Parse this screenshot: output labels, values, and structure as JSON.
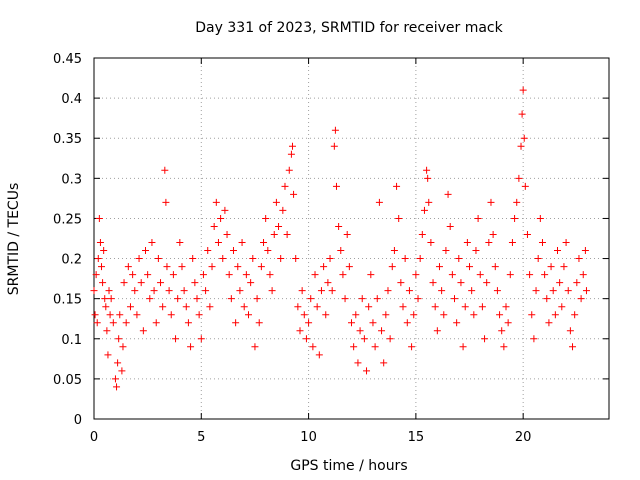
{
  "chart_data": {
    "type": "scatter",
    "title": "Day 331 of 2023, SRMTID for receiver mack",
    "xlabel": "GPS time / hours",
    "ylabel": "SRMTID / TECUs",
    "xlim": [
      0,
      24
    ],
    "ylim": [
      0,
      0.45
    ],
    "xticks": [
      0,
      5,
      10,
      15,
      20
    ],
    "xtick_labels": [
      "0",
      "5",
      "10",
      "15",
      "20"
    ],
    "yticks": [
      0,
      0.05,
      0.1,
      0.15,
      0.2,
      0.25,
      0.3,
      0.35,
      0.4,
      0.45
    ],
    "ytick_labels": [
      "0",
      "0.05",
      "0.1",
      "0.15",
      "0.2",
      "0.25",
      "0.3",
      "0.35",
      "0.4",
      "0.45"
    ],
    "grid": true,
    "marker": "+",
    "color": "#ff0000",
    "series": [
      {
        "name": "SRMTID",
        "points": [
          [
            0.0,
            0.16
          ],
          [
            0.05,
            0.13
          ],
          [
            0.1,
            0.18
          ],
          [
            0.15,
            0.12
          ],
          [
            0.2,
            0.2
          ],
          [
            0.25,
            0.25
          ],
          [
            0.3,
            0.22
          ],
          [
            0.35,
            0.19
          ],
          [
            0.4,
            0.17
          ],
          [
            0.45,
            0.21
          ],
          [
            0.5,
            0.15
          ],
          [
            0.55,
            0.14
          ],
          [
            0.6,
            0.11
          ],
          [
            0.65,
            0.08
          ],
          [
            0.7,
            0.16
          ],
          [
            0.75,
            0.13
          ],
          [
            0.8,
            0.15
          ],
          [
            0.9,
            0.12
          ],
          [
            1.0,
            0.05
          ],
          [
            1.05,
            0.04
          ],
          [
            1.1,
            0.07
          ],
          [
            1.15,
            0.1
          ],
          [
            1.2,
            0.13
          ],
          [
            1.3,
            0.06
          ],
          [
            1.35,
            0.09
          ],
          [
            1.4,
            0.17
          ],
          [
            1.5,
            0.12
          ],
          [
            1.6,
            0.19
          ],
          [
            1.7,
            0.14
          ],
          [
            1.8,
            0.18
          ],
          [
            1.9,
            0.16
          ],
          [
            2.0,
            0.13
          ],
          [
            2.1,
            0.2
          ],
          [
            2.2,
            0.17
          ],
          [
            2.3,
            0.11
          ],
          [
            2.4,
            0.21
          ],
          [
            2.5,
            0.18
          ],
          [
            2.6,
            0.15
          ],
          [
            2.7,
            0.22
          ],
          [
            2.8,
            0.16
          ],
          [
            2.9,
            0.12
          ],
          [
            3.0,
            0.2
          ],
          [
            3.1,
            0.17
          ],
          [
            3.2,
            0.14
          ],
          [
            3.3,
            0.31
          ],
          [
            3.35,
            0.27
          ],
          [
            3.4,
            0.19
          ],
          [
            3.5,
            0.16
          ],
          [
            3.6,
            0.13
          ],
          [
            3.7,
            0.18
          ],
          [
            3.8,
            0.1
          ],
          [
            3.9,
            0.15
          ],
          [
            4.0,
            0.22
          ],
          [
            4.1,
            0.19
          ],
          [
            4.2,
            0.16
          ],
          [
            4.3,
            0.14
          ],
          [
            4.4,
            0.12
          ],
          [
            4.5,
            0.09
          ],
          [
            4.6,
            0.2
          ],
          [
            4.7,
            0.17
          ],
          [
            4.8,
            0.15
          ],
          [
            4.9,
            0.13
          ],
          [
            5.0,
            0.1
          ],
          [
            5.1,
            0.18
          ],
          [
            5.2,
            0.16
          ],
          [
            5.3,
            0.21
          ],
          [
            5.4,
            0.14
          ],
          [
            5.5,
            0.19
          ],
          [
            5.6,
            0.24
          ],
          [
            5.7,
            0.27
          ],
          [
            5.8,
            0.22
          ],
          [
            5.9,
            0.25
          ],
          [
            6.0,
            0.2
          ],
          [
            6.1,
            0.26
          ],
          [
            6.2,
            0.23
          ],
          [
            6.3,
            0.18
          ],
          [
            6.4,
            0.15
          ],
          [
            6.5,
            0.21
          ],
          [
            6.6,
            0.12
          ],
          [
            6.7,
            0.19
          ],
          [
            6.8,
            0.16
          ],
          [
            6.9,
            0.22
          ],
          [
            7.0,
            0.14
          ],
          [
            7.1,
            0.18
          ],
          [
            7.2,
            0.13
          ],
          [
            7.3,
            0.17
          ],
          [
            7.4,
            0.2
          ],
          [
            7.5,
            0.09
          ],
          [
            7.6,
            0.15
          ],
          [
            7.7,
            0.12
          ],
          [
            7.8,
            0.19
          ],
          [
            7.9,
            0.22
          ],
          [
            8.0,
            0.25
          ],
          [
            8.1,
            0.21
          ],
          [
            8.2,
            0.18
          ],
          [
            8.3,
            0.16
          ],
          [
            8.4,
            0.23
          ],
          [
            8.5,
            0.27
          ],
          [
            8.6,
            0.24
          ],
          [
            8.7,
            0.2
          ],
          [
            8.8,
            0.26
          ],
          [
            8.9,
            0.29
          ],
          [
            9.0,
            0.23
          ],
          [
            9.1,
            0.31
          ],
          [
            9.2,
            0.33
          ],
          [
            9.25,
            0.34
          ],
          [
            9.3,
            0.28
          ],
          [
            9.4,
            0.2
          ],
          [
            9.5,
            0.14
          ],
          [
            9.6,
            0.11
          ],
          [
            9.7,
            0.16
          ],
          [
            9.8,
            0.13
          ],
          [
            9.9,
            0.1
          ],
          [
            10.0,
            0.12
          ],
          [
            10.1,
            0.15
          ],
          [
            10.2,
            0.09
          ],
          [
            10.3,
            0.18
          ],
          [
            10.4,
            0.14
          ],
          [
            10.5,
            0.08
          ],
          [
            10.6,
            0.16
          ],
          [
            10.7,
            0.19
          ],
          [
            10.8,
            0.13
          ],
          [
            10.9,
            0.17
          ],
          [
            11.0,
            0.2
          ],
          [
            11.1,
            0.16
          ],
          [
            11.2,
            0.34
          ],
          [
            11.25,
            0.36
          ],
          [
            11.3,
            0.29
          ],
          [
            11.4,
            0.24
          ],
          [
            11.5,
            0.21
          ],
          [
            11.6,
            0.18
          ],
          [
            11.7,
            0.15
          ],
          [
            11.8,
            0.23
          ],
          [
            11.9,
            0.19
          ],
          [
            12.0,
            0.12
          ],
          [
            12.1,
            0.09
          ],
          [
            12.2,
            0.13
          ],
          [
            12.3,
            0.07
          ],
          [
            12.4,
            0.11
          ],
          [
            12.5,
            0.15
          ],
          [
            12.6,
            0.1
          ],
          [
            12.7,
            0.06
          ],
          [
            12.8,
            0.14
          ],
          [
            12.9,
            0.18
          ],
          [
            13.0,
            0.12
          ],
          [
            13.1,
            0.09
          ],
          [
            13.2,
            0.15
          ],
          [
            13.3,
            0.27
          ],
          [
            13.4,
            0.11
          ],
          [
            13.5,
            0.07
          ],
          [
            13.6,
            0.13
          ],
          [
            13.7,
            0.16
          ],
          [
            13.8,
            0.1
          ],
          [
            13.9,
            0.19
          ],
          [
            14.0,
            0.21
          ],
          [
            14.1,
            0.29
          ],
          [
            14.2,
            0.25
          ],
          [
            14.3,
            0.17
          ],
          [
            14.4,
            0.14
          ],
          [
            14.5,
            0.2
          ],
          [
            14.6,
            0.12
          ],
          [
            14.7,
            0.16
          ],
          [
            14.8,
            0.09
          ],
          [
            14.9,
            0.13
          ],
          [
            15.0,
            0.18
          ],
          [
            15.1,
            0.15
          ],
          [
            15.2,
            0.2
          ],
          [
            15.3,
            0.23
          ],
          [
            15.4,
            0.26
          ],
          [
            15.5,
            0.31
          ],
          [
            15.55,
            0.3
          ],
          [
            15.6,
            0.27
          ],
          [
            15.7,
            0.22
          ],
          [
            15.8,
            0.17
          ],
          [
            15.9,
            0.14
          ],
          [
            16.0,
            0.11
          ],
          [
            16.1,
            0.19
          ],
          [
            16.2,
            0.16
          ],
          [
            16.3,
            0.13
          ],
          [
            16.4,
            0.21
          ],
          [
            16.5,
            0.28
          ],
          [
            16.6,
            0.24
          ],
          [
            16.7,
            0.18
          ],
          [
            16.8,
            0.15
          ],
          [
            16.9,
            0.12
          ],
          [
            17.0,
            0.2
          ],
          [
            17.1,
            0.17
          ],
          [
            17.2,
            0.09
          ],
          [
            17.3,
            0.14
          ],
          [
            17.4,
            0.22
          ],
          [
            17.5,
            0.19
          ],
          [
            17.6,
            0.16
          ],
          [
            17.7,
            0.13
          ],
          [
            17.8,
            0.21
          ],
          [
            17.9,
            0.25
          ],
          [
            18.0,
            0.18
          ],
          [
            18.1,
            0.14
          ],
          [
            18.2,
            0.1
          ],
          [
            18.3,
            0.17
          ],
          [
            18.4,
            0.22
          ],
          [
            18.5,
            0.27
          ],
          [
            18.6,
            0.23
          ],
          [
            18.7,
            0.19
          ],
          [
            18.8,
            0.16
          ],
          [
            18.9,
            0.13
          ],
          [
            19.0,
            0.11
          ],
          [
            19.1,
            0.09
          ],
          [
            19.2,
            0.14
          ],
          [
            19.3,
            0.12
          ],
          [
            19.4,
            0.18
          ],
          [
            19.5,
            0.22
          ],
          [
            19.6,
            0.25
          ],
          [
            19.7,
            0.27
          ],
          [
            19.8,
            0.3
          ],
          [
            19.9,
            0.34
          ],
          [
            19.95,
            0.38
          ],
          [
            20.0,
            0.41
          ],
          [
            20.05,
            0.35
          ],
          [
            20.1,
            0.29
          ],
          [
            20.2,
            0.23
          ],
          [
            20.3,
            0.18
          ],
          [
            20.4,
            0.13
          ],
          [
            20.5,
            0.1
          ],
          [
            20.6,
            0.16
          ],
          [
            20.7,
            0.2
          ],
          [
            20.8,
            0.25
          ],
          [
            20.9,
            0.22
          ],
          [
            21.0,
            0.18
          ],
          [
            21.1,
            0.15
          ],
          [
            21.2,
            0.12
          ],
          [
            21.3,
            0.19
          ],
          [
            21.4,
            0.16
          ],
          [
            21.5,
            0.13
          ],
          [
            21.6,
            0.21
          ],
          [
            21.7,
            0.17
          ],
          [
            21.8,
            0.14
          ],
          [
            21.9,
            0.19
          ],
          [
            22.0,
            0.22
          ],
          [
            22.1,
            0.16
          ],
          [
            22.2,
            0.11
          ],
          [
            22.3,
            0.09
          ],
          [
            22.4,
            0.13
          ],
          [
            22.5,
            0.17
          ],
          [
            22.6,
            0.2
          ],
          [
            22.7,
            0.15
          ],
          [
            22.8,
            0.18
          ],
          [
            22.9,
            0.21
          ],
          [
            22.95,
            0.16
          ]
        ]
      }
    ]
  }
}
